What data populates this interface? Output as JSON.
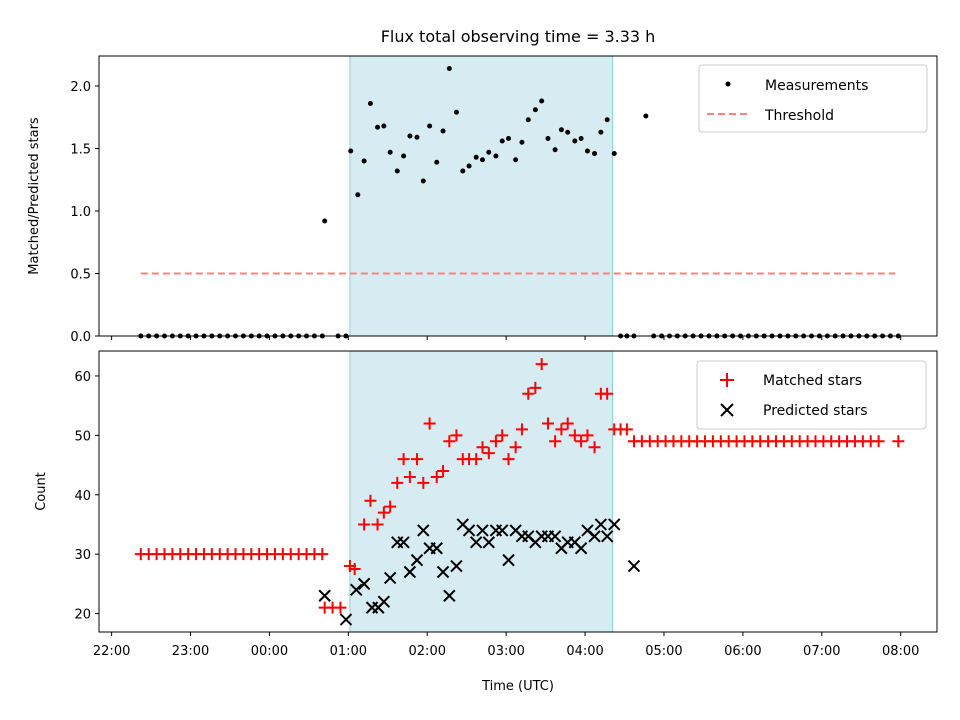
{
  "chart_data": [
    {
      "type": "scatter",
      "panel": "top",
      "title": "Flux total observing time = 3.33 h",
      "xlabel": "",
      "ylabel": "Matched/Predicted stars",
      "xlim": [
        21.84,
        32.46
      ],
      "ylim": [
        0,
        2.24
      ],
      "yticks": [
        0.0,
        0.5,
        1.0,
        1.5,
        2.0
      ],
      "ytick_labels": [
        "0.0",
        "0.5",
        "1.0",
        "1.5",
        "2.0"
      ],
      "x_unit": "hours since 00:00 UTC of first day (values above 24 are next day)",
      "shaded_interval": {
        "x0": 25.02,
        "x1": 28.35,
        "color": "#add8e6"
      },
      "legend": {
        "position": "top-right",
        "entries": [
          "Measurements",
          "Threshold"
        ]
      },
      "threshold": {
        "name": "Threshold",
        "y": 0.5,
        "x_range": [
          22.37,
          31.93
        ],
        "color": "#ff8080"
      },
      "series": [
        {
          "name": "Measurements",
          "color": "#000000",
          "x": [
            22.37,
            22.47,
            22.57,
            22.67,
            22.77,
            22.87,
            22.97,
            23.07,
            23.17,
            23.27,
            23.37,
            23.47,
            23.57,
            23.67,
            23.77,
            23.87,
            23.97,
            24.07,
            24.17,
            24.27,
            24.37,
            24.47,
            24.57,
            24.67,
            24.7,
            24.87,
            24.97,
            25.03,
            25.12,
            25.2,
            25.28,
            25.37,
            25.45,
            25.53,
            25.62,
            25.7,
            25.78,
            25.87,
            25.95,
            26.03,
            26.12,
            26.2,
            26.28,
            26.37,
            26.45,
            26.53,
            26.62,
            26.7,
            26.78,
            26.87,
            26.95,
            27.03,
            27.12,
            27.2,
            27.28,
            27.37,
            27.45,
            27.53,
            27.62,
            27.7,
            27.78,
            27.87,
            27.95,
            28.03,
            28.12,
            28.2,
            28.28,
            28.37,
            28.45,
            28.53,
            28.62,
            28.77,
            28.87,
            28.97,
            29.07,
            29.17,
            29.27,
            29.37,
            29.47,
            29.57,
            29.67,
            29.77,
            29.87,
            29.97,
            30.07,
            30.17,
            30.27,
            30.37,
            30.47,
            30.57,
            30.67,
            30.77,
            30.87,
            30.97,
            31.07,
            31.17,
            31.27,
            31.37,
            31.47,
            31.57,
            31.67,
            31.77,
            31.87,
            31.97
          ],
          "y": [
            0,
            0,
            0,
            0,
            0,
            0,
            0,
            0,
            0,
            0,
            0,
            0,
            0,
            0,
            0,
            0,
            0,
            0,
            0,
            0,
            0,
            0,
            0,
            0,
            0.92,
            0,
            0,
            1.48,
            1.13,
            1.4,
            1.86,
            1.67,
            1.68,
            1.47,
            1.32,
            1.44,
            1.6,
            1.59,
            1.24,
            1.68,
            1.39,
            1.64,
            2.14,
            1.79,
            1.32,
            1.36,
            1.43,
            1.41,
            1.47,
            1.44,
            1.56,
            1.58,
            1.41,
            1.55,
            1.73,
            1.81,
            1.88,
            1.58,
            1.49,
            1.65,
            1.63,
            1.56,
            1.58,
            1.48,
            1.46,
            1.63,
            1.73,
            1.46,
            0,
            0,
            0,
            1.76,
            0,
            0,
            0,
            0,
            0,
            0,
            0,
            0,
            0,
            0,
            0,
            0,
            0,
            0,
            0,
            0,
            0,
            0,
            0,
            0,
            0,
            0,
            0,
            0,
            0,
            0,
            0,
            0,
            0,
            0,
            0,
            0
          ]
        }
      ]
    },
    {
      "type": "scatter",
      "panel": "bottom",
      "xlabel": "Time (UTC)",
      "ylabel": "Count",
      "xlim": [
        21.84,
        32.46
      ],
      "ylim": [
        16.9,
        64.2
      ],
      "yticks": [
        20,
        30,
        40,
        50,
        60
      ],
      "ytick_labels": [
        "20",
        "30",
        "40",
        "50",
        "60"
      ],
      "xticks": [
        22,
        23,
        24,
        25,
        26,
        27,
        28,
        29,
        30,
        31,
        32
      ],
      "xtick_labels": [
        "22:00",
        "23:00",
        "00:00",
        "01:00",
        "02:00",
        "03:00",
        "04:00",
        "05:00",
        "06:00",
        "07:00",
        "08:00"
      ],
      "shaded_interval": {
        "x0": 25.02,
        "x1": 28.35,
        "color": "#add8e6"
      },
      "legend": {
        "position": "top-right",
        "entries": [
          "Matched stars",
          "Predicted stars"
        ]
      },
      "series": [
        {
          "name": "Matched stars",
          "marker": "plus",
          "color": "#ff0000",
          "x": [
            22.37,
            22.47,
            22.57,
            22.67,
            22.77,
            22.87,
            22.97,
            23.07,
            23.17,
            23.27,
            23.37,
            23.47,
            23.57,
            23.67,
            23.77,
            23.87,
            23.97,
            24.07,
            24.17,
            24.27,
            24.37,
            24.47,
            24.57,
            24.67,
            24.7,
            24.8,
            24.9,
            25.02,
            25.08,
            25.2,
            25.28,
            25.37,
            25.45,
            25.53,
            25.62,
            25.7,
            25.78,
            25.87,
            25.95,
            26.03,
            26.12,
            26.2,
            26.28,
            26.37,
            26.45,
            26.53,
            26.62,
            26.7,
            26.78,
            26.87,
            26.95,
            27.03,
            27.12,
            27.2,
            27.28,
            27.37,
            27.45,
            27.53,
            27.62,
            27.7,
            27.78,
            27.87,
            27.95,
            28.03,
            28.12,
            28.2,
            28.28,
            28.37,
            28.45,
            28.53,
            28.62,
            28.72,
            28.82,
            28.92,
            29.02,
            29.12,
            29.22,
            29.32,
            29.42,
            29.52,
            29.62,
            29.72,
            29.82,
            29.92,
            30.02,
            30.12,
            30.22,
            30.32,
            30.42,
            30.52,
            30.62,
            30.72,
            30.82,
            30.92,
            31.02,
            31.12,
            31.22,
            31.32,
            31.42,
            31.52,
            31.62,
            31.72,
            31.97
          ],
          "y": [
            30,
            30,
            30,
            30,
            30,
            30,
            30,
            30,
            30,
            30,
            30,
            30,
            30,
            30,
            30,
            30,
            30,
            30,
            30,
            30,
            30,
            30,
            30,
            30,
            21,
            21,
            21,
            28,
            27.5,
            35,
            39,
            35,
            37,
            38,
            42,
            46,
            43,
            46,
            42,
            52,
            43,
            44,
            49,
            50,
            46,
            46,
            46,
            48,
            47,
            49,
            50,
            46,
            48,
            51,
            57,
            58,
            62,
            52,
            49,
            51,
            52,
            50,
            49,
            50,
            48,
            57,
            57,
            51,
            51,
            51,
            49,
            49,
            49,
            49,
            49,
            49,
            49,
            49,
            49,
            49,
            49,
            49,
            49,
            49,
            49,
            49,
            49,
            49,
            49,
            49,
            49,
            49,
            49,
            49,
            49,
            49,
            49,
            49,
            49,
            49,
            49,
            49,
            49
          ]
        },
        {
          "name": "Predicted stars",
          "marker": "x",
          "color": "#000000",
          "x": [
            24.7,
            24.97,
            25.1,
            25.2,
            25.3,
            25.38,
            25.45,
            25.53,
            25.62,
            25.7,
            25.78,
            25.87,
            25.95,
            26.03,
            26.12,
            26.2,
            26.28,
            26.37,
            26.45,
            26.53,
            26.62,
            26.7,
            26.78,
            26.87,
            26.95,
            27.03,
            27.12,
            27.2,
            27.28,
            27.37,
            27.45,
            27.53,
            27.62,
            27.7,
            27.78,
            27.87,
            27.95,
            28.03,
            28.12,
            28.2,
            28.28,
            28.37,
            28.62
          ],
          "y": [
            23,
            19,
            24,
            25,
            21,
            21,
            22,
            26,
            32,
            32,
            27,
            29,
            34,
            31,
            31,
            27,
            23,
            28,
            35,
            34,
            32,
            34,
            32,
            34,
            34,
            29,
            34,
            33,
            33,
            32,
            33,
            33,
            33,
            31,
            32,
            32,
            31,
            34,
            33,
            35,
            33,
            35,
            28
          ]
        }
      ]
    }
  ]
}
